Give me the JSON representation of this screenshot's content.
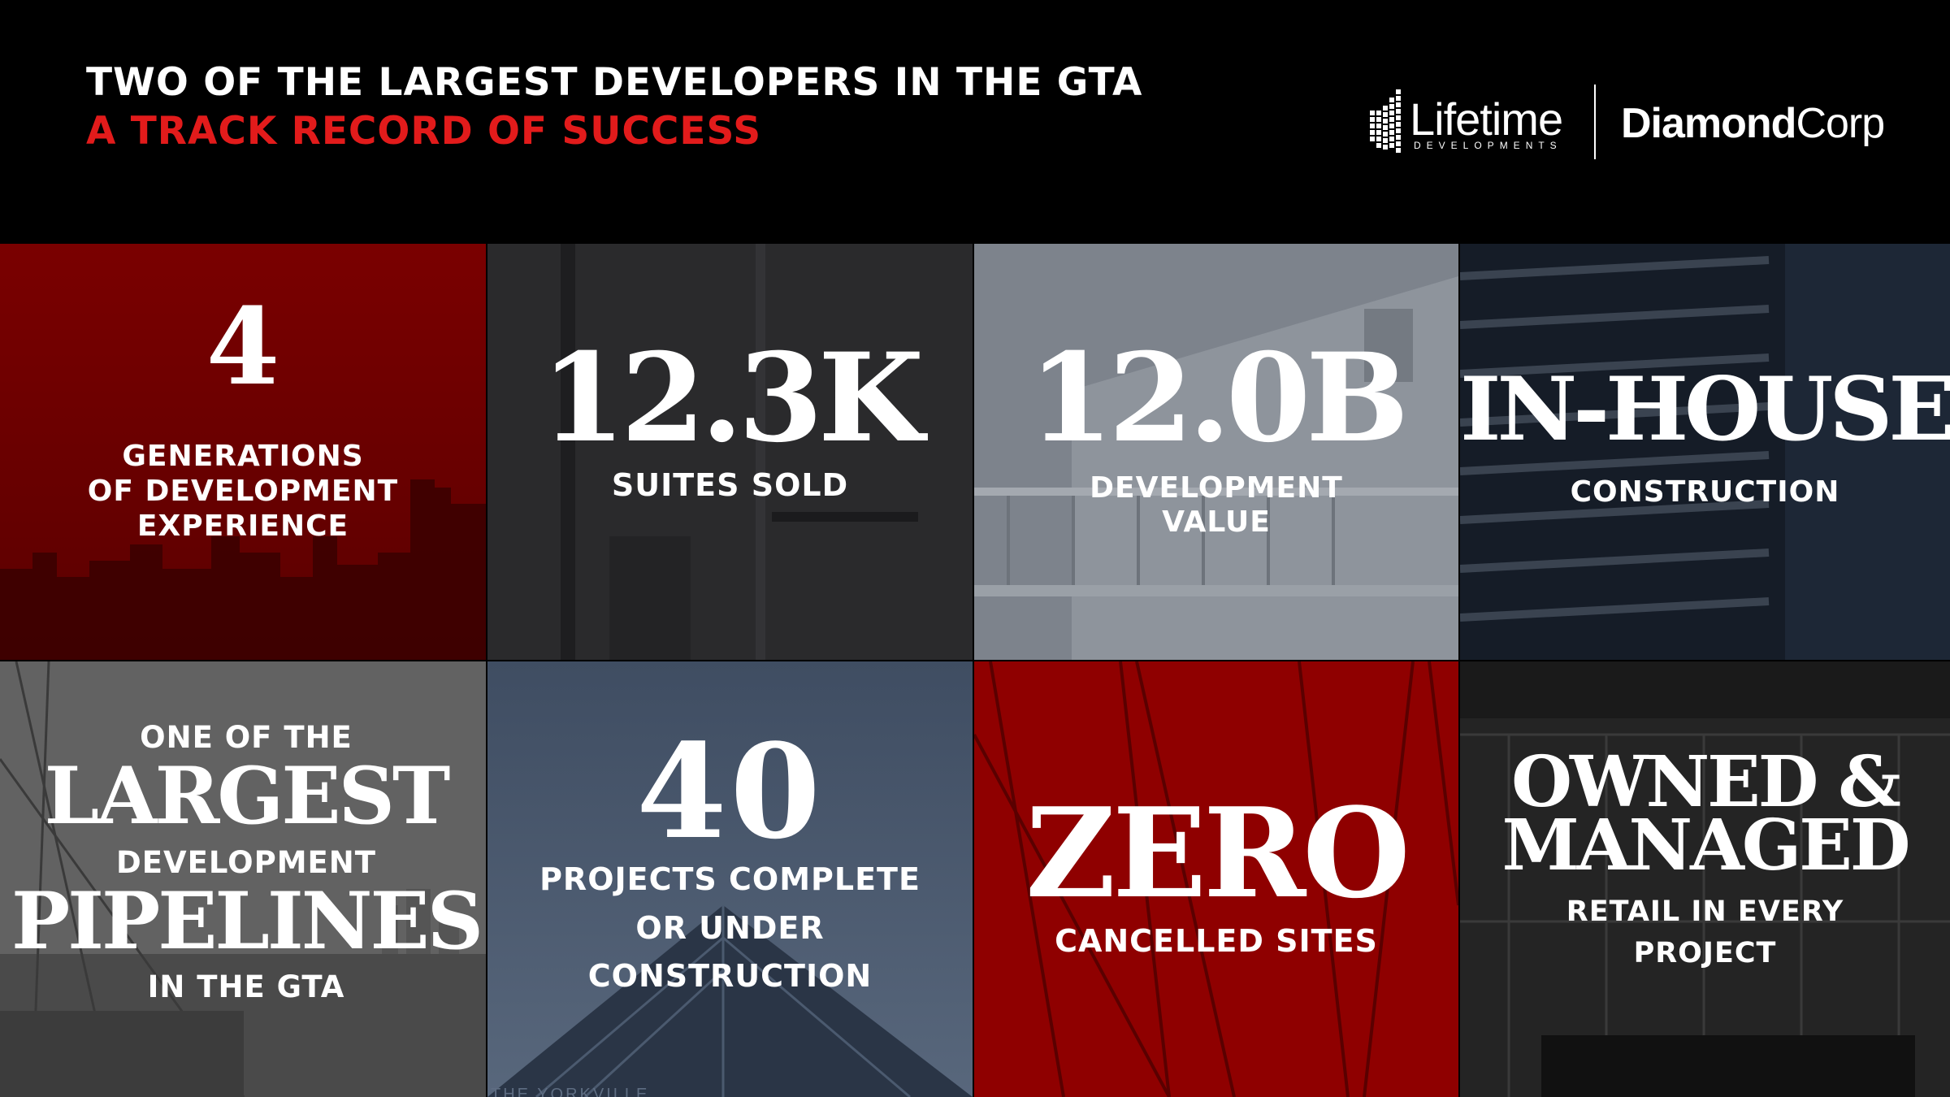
{
  "header": {
    "title_line1": "TWO OF THE LARGEST DEVELOPERS IN THE GTA",
    "title_line2": "A TRACK RECORD OF SUCCESS",
    "accent_color": "#e21b1b"
  },
  "logos": {
    "lifetime": {
      "name": "Lifetime",
      "sub": "DEVELOPMENTS"
    },
    "diamondcorp": {
      "bold": "Diamond",
      "light": "Corp"
    }
  },
  "tiles": [
    {
      "big": "4",
      "caption_lines": [
        "GENERATIONS",
        "OF DEVELOPMENT",
        "EXPERIENCE"
      ]
    },
    {
      "big": "12.3K",
      "caption_lines": [
        "SUITES SOLD"
      ]
    },
    {
      "big": "12.0B",
      "caption_lines": [
        "DEVELOPMENT",
        "VALUE"
      ]
    },
    {
      "big": "IN-HOUSE",
      "caption_lines": [
        "CONSTRUCTION"
      ]
    },
    {
      "lines": [
        "ONE OF THE",
        "LARGEST",
        "DEVELOPMENT",
        "PIPELINES",
        "IN THE GTA"
      ]
    },
    {
      "big": "40",
      "caption_lines": [
        "PROJECTS COMPLETE",
        "OR UNDER",
        "CONSTRUCTION"
      ],
      "watermark": "THE YORKVILLE"
    },
    {
      "big": "ZERO",
      "caption_lines": [
        "CANCELLED SITES"
      ]
    },
    {
      "big_lines": [
        "OWNED &",
        "MANAGED"
      ],
      "caption_lines": [
        "RETAIL IN EVERY",
        "PROJECT"
      ]
    }
  ]
}
